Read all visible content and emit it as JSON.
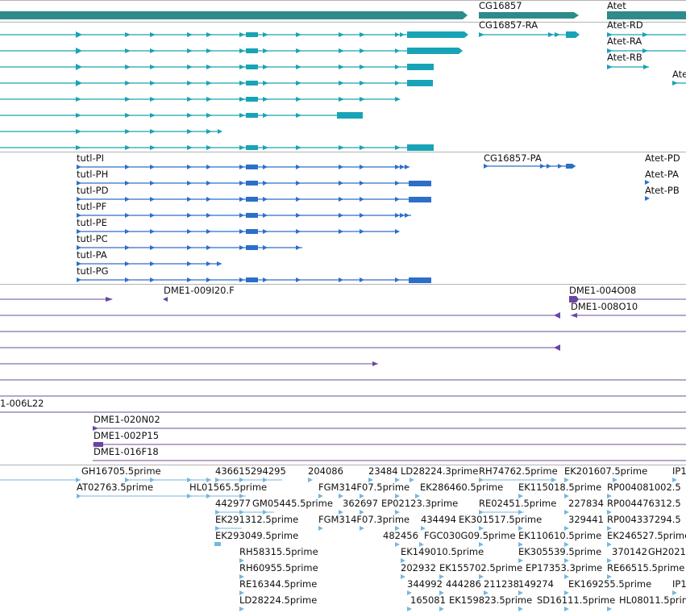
{
  "colors": {
    "gene": "#2f8a8c",
    "transcript": "#18a3b6",
    "cds": "#2c6fc9",
    "clone": "#6b45a5",
    "cloneLine": "#6e4d9b",
    "est": "#74b7e0",
    "separator": "#b3b3b3"
  },
  "genes": {
    "cg16857": "CG16857",
    "atet": "Atet"
  },
  "transcripts": {
    "cg16857_ra": "CG16857-RA",
    "atet_rd": "Atet-RD",
    "atet_ra": "Atet-RA",
    "atet_rb": "Atet-RB",
    "atet_partial": "Atet"
  },
  "cds": {
    "tutl_pi": "tutl-PI",
    "tutl_ph": "tutl-PH",
    "tutl_pd": "tutl-PD",
    "tutl_pf": "tutl-PF",
    "tutl_pe": "tutl-PE",
    "tutl_pc": "tutl-PC",
    "tutl_pa": "tutl-PA",
    "tutl_pg": "tutl-PG",
    "cg16857_pa": "CG16857-PA",
    "atet_pd": "Atet-PD",
    "atet_pa": "Atet-PA",
    "atet_pb": "Atet-PB"
  },
  "clones": {
    "dme1_009i20_f": "DME1-009I20.F",
    "dme1_004o08": "DME1-004O08",
    "dme1_008o10": "DME1-008O10",
    "dme1_006l22": "1-006L22",
    "dme1_020n02": "DME1-020N02",
    "dme1_002p15": "DME1-002P15",
    "dme1_016f18": "DME1-016F18"
  },
  "ests": {
    "r1": [
      "GH16705.5prime",
      "436615294295",
      "204086",
      "23484",
      "LD28224.3prime",
      "RH74762.5prime",
      "EK201607.5prime",
      "IP1"
    ],
    "r2": [
      "AT02763.5prime",
      "HL01565.5prime",
      "FGM314F07.5prime",
      "EK286460.5prime",
      "EK115018.5prime",
      "RP004081002.5"
    ],
    "r3": [
      "442977",
      "GM05445.5prime",
      "362697",
      "EP02123.3prime",
      "RE02451.5prime",
      "227834",
      "RP004476312.5"
    ],
    "r4": [
      "EK291312.5prime",
      "FGM314F07.3prime",
      "434494",
      "EK301517.5prime",
      "329441",
      "RP004337294.5"
    ],
    "r5": [
      "EK293049.5prime",
      "482456",
      "FGC030G09.5prime",
      "EK110610.5prime",
      "EK246527.5prime"
    ],
    "r6": [
      "RH58315.5prime",
      "EK149010.5prime",
      "EK305539.5prime",
      "370142",
      "GH2021"
    ],
    "r7": [
      "RH60955.5prime",
      "202932",
      "EK155702.5prime",
      "EP17353.3prime",
      "RE66515.5prime"
    ],
    "r8": [
      "RE16344.5prime",
      "344992",
      "444286",
      "211238",
      "149274",
      "EK169255.5prime",
      "IP1"
    ],
    "r9": [
      "LD28224.5prime",
      "165081",
      "EK159823.5prime",
      "SD16111.5prime",
      "HL08011.5prime"
    ]
  }
}
